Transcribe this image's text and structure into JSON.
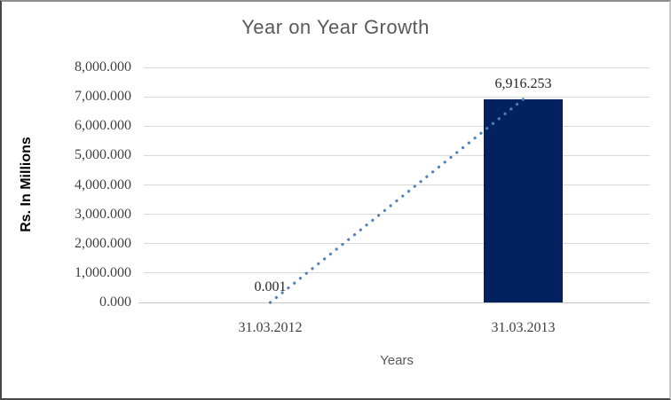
{
  "chart_data": {
    "type": "bar",
    "title": "Year on Year Growth",
    "xlabel": "Years",
    "ylabel": "Rs. In Millions",
    "categories": [
      "31.03.2012",
      "31.03.2013"
    ],
    "series": [
      {
        "name": "Rs. In Millions",
        "values": [
          0.001,
          6916.253
        ],
        "data_labels": [
          "0.001",
          "6,916.253"
        ]
      }
    ],
    "trendline": {
      "type": "linear",
      "style": "dotted",
      "points": [
        [
          0,
          0.001
        ],
        [
          1,
          6916.253
        ]
      ]
    },
    "ylim": [
      0,
      8000
    ],
    "ytick_step": 1000,
    "ytick_labels": [
      "0.000",
      "1,000.000",
      "2,000.000",
      "3,000.000",
      "4,000.000",
      "5,000.000",
      "6,000.000",
      "7,000.000",
      "8,000.000"
    ],
    "grid": true,
    "legend": "none",
    "colors": {
      "bar": "#03215F",
      "trendline": "#4E81BD",
      "gridline": "#D9D9D9",
      "axis_line": "#C6C6C6",
      "title": "#595959",
      "axis_title": "#595959",
      "tick_label": "#3F3F3F",
      "data_label": "#262626"
    }
  }
}
